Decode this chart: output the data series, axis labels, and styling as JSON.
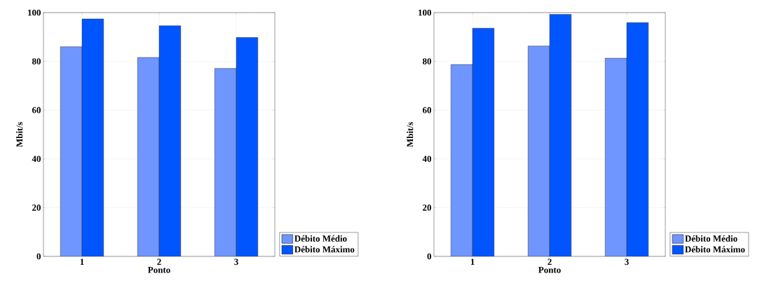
{
  "chart_data": [
    {
      "type": "bar",
      "xlabel": "Ponto",
      "ylabel": "Mbit/s",
      "categories": [
        "1",
        "2",
        "3"
      ],
      "series": [
        {
          "name": "Débito Médio",
          "color": "#6f96ff",
          "values": [
            86.0,
            81.6,
            77.1
          ]
        },
        {
          "name": "Débito Máximo",
          "color": "#0055ff",
          "values": [
            97.4,
            94.6,
            89.8
          ]
        }
      ],
      "ylim": [
        0,
        100
      ],
      "yticks": [
        0,
        20,
        40,
        60,
        80,
        100
      ],
      "grid": true,
      "legend": "bottom right"
    },
    {
      "type": "bar",
      "xlabel": "Ponto",
      "ylabel": "Mbit/s",
      "categories": [
        "1",
        "2",
        "3"
      ],
      "series": [
        {
          "name": "Débito Médio",
          "color": "#6f96ff",
          "values": [
            78.7,
            86.3,
            81.3
          ]
        },
        {
          "name": "Débito Máximo",
          "color": "#0055ff",
          "values": [
            93.6,
            99.3,
            95.9
          ]
        }
      ],
      "ylim": [
        0,
        100
      ],
      "yticks": [
        0,
        20,
        40,
        60,
        80,
        100
      ],
      "grid": true,
      "legend": "bottom right"
    }
  ]
}
